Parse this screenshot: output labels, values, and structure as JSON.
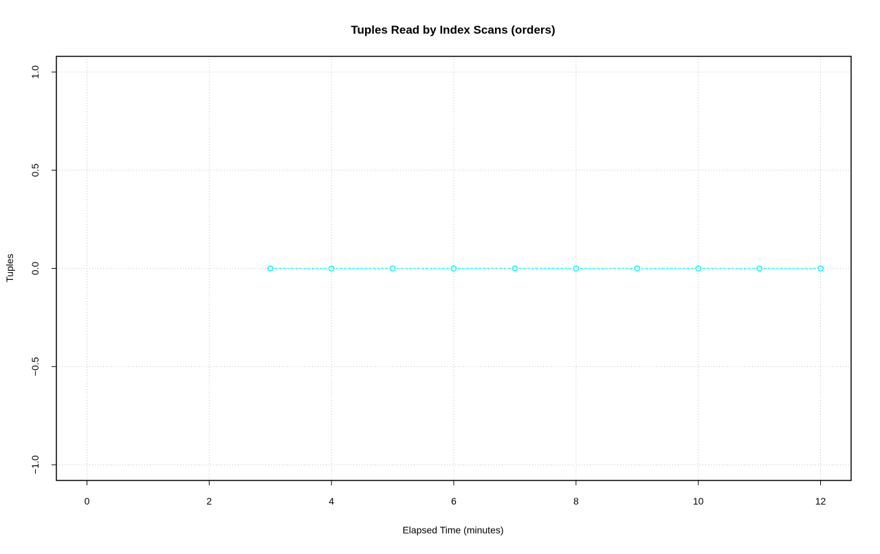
{
  "chart_data": {
    "type": "line",
    "title": "Tuples Read by Index Scans (orders)",
    "xlabel": "Elapsed Time (minutes)",
    "ylabel": "Tuples",
    "xlim": [
      -0.5,
      12.5
    ],
    "ylim": [
      -1.08,
      1.08
    ],
    "x_ticks": [
      "0",
      "2",
      "4",
      "6",
      "8",
      "10",
      "12"
    ],
    "y_ticks": [
      "-1.0",
      "-0.5",
      "0.0",
      "0.5",
      "1.0"
    ],
    "grid": true,
    "series": [
      {
        "color": "#00ffff",
        "marker": "open-circle",
        "line_style": "dashed",
        "x": [
          3,
          4,
          5,
          6,
          7,
          8,
          9,
          10,
          11,
          12
        ],
        "y": [
          0,
          0,
          0,
          0,
          0,
          0,
          0,
          0,
          0,
          0
        ]
      }
    ]
  }
}
